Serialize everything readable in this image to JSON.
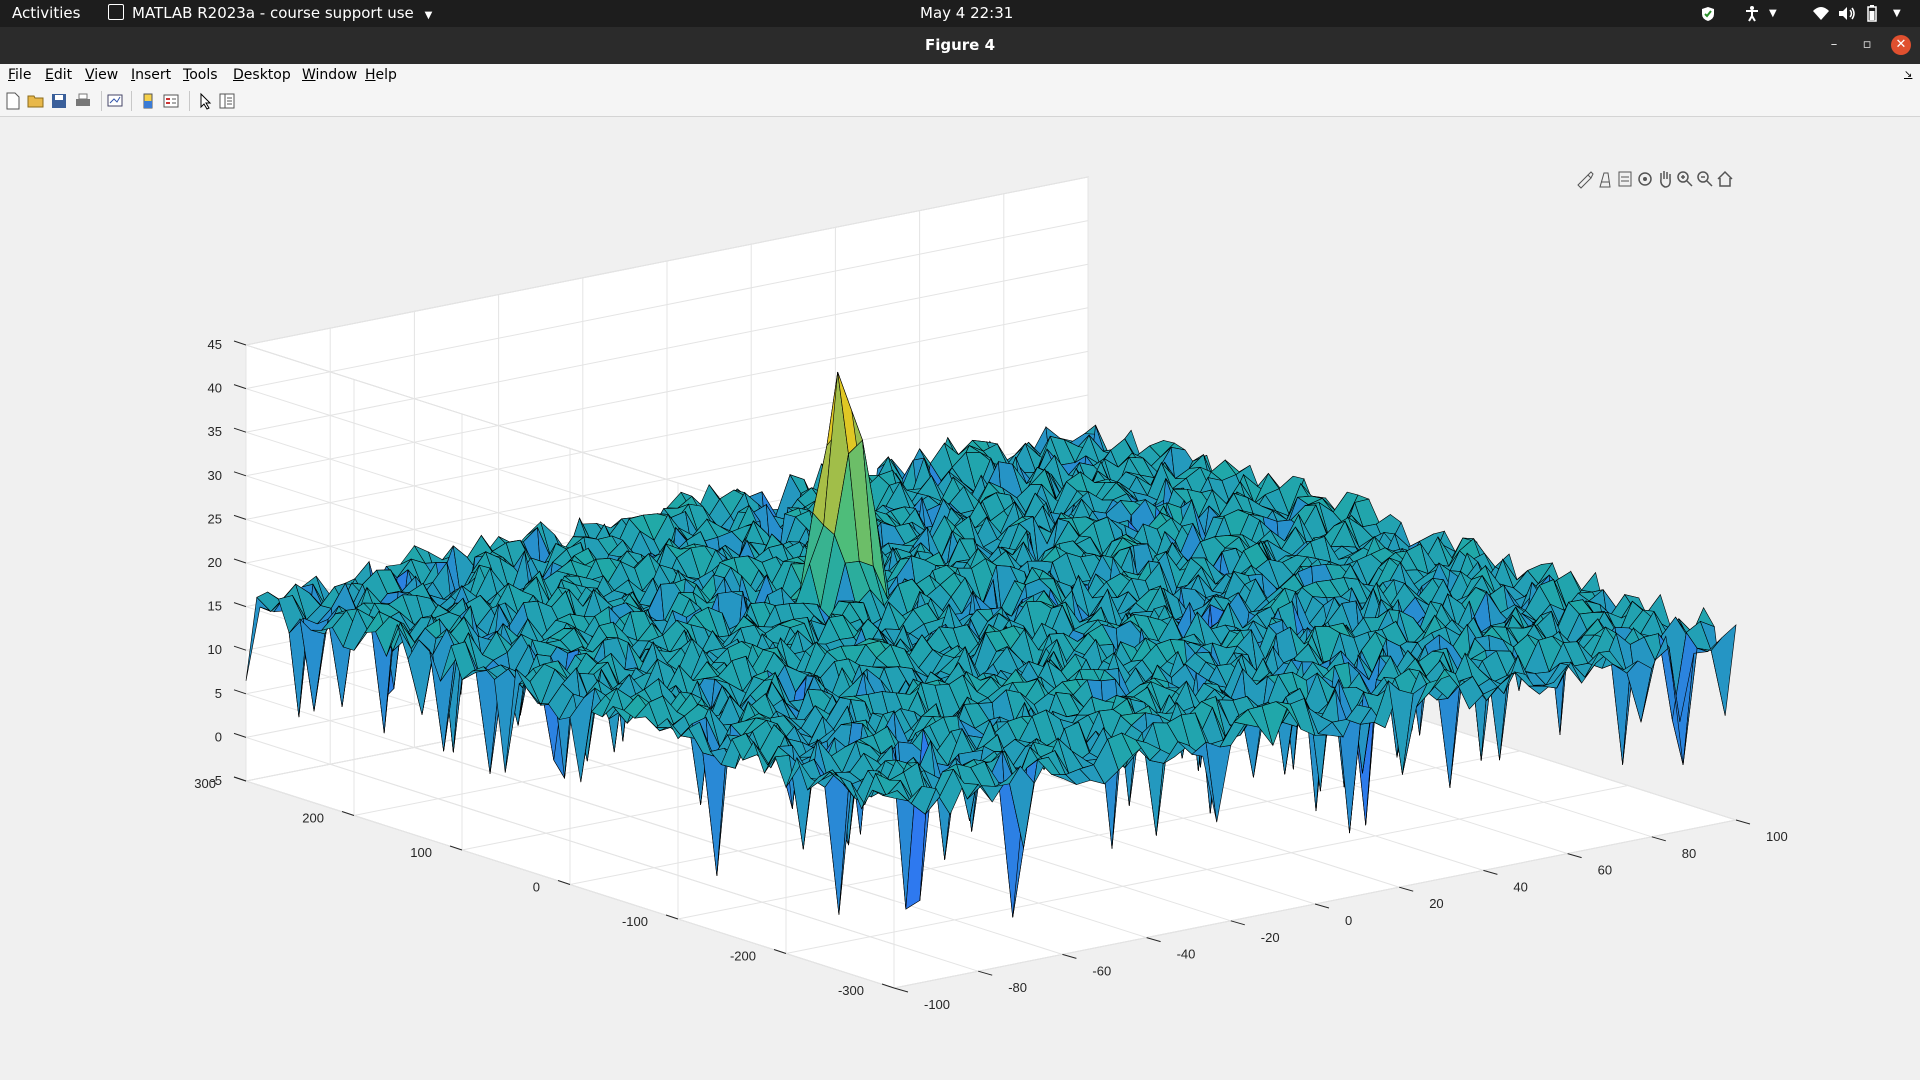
{
  "system_bar": {
    "activities": "Activities",
    "app_name": "MATLAB R2023a - course support use",
    "datetime": "May 4  22:31"
  },
  "window": {
    "title": "Figure 4"
  },
  "menu": [
    "File",
    "Edit",
    "View",
    "Insert",
    "Tools",
    "Desktop",
    "Window",
    "Help"
  ],
  "toolbar_icons": [
    "new-figure-icon",
    "open-icon",
    "save-icon",
    "print-icon",
    "link-plot-icon",
    "insert-colorbar-icon",
    "insert-legend-icon",
    "edit-plot-icon",
    "property-inspector-icon"
  ],
  "axes_toolbar_icons": [
    "brush-icon",
    "data-tips-icon",
    "export-icon",
    "rotate-3d-icon",
    "pan-icon",
    "zoom-in-icon",
    "zoom-out-icon",
    "home-icon"
  ],
  "colors": {
    "peak": "#e6c32b",
    "surface": "#20a8a8",
    "edge": "#000000",
    "low": "#3a4bd6"
  },
  "chart_data": {
    "type": "surface",
    "x_axis": {
      "ticks": [
        "-100",
        "-80",
        "-60",
        "-40",
        "-20",
        "0",
        "20",
        "40",
        "60",
        "80",
        "100"
      ],
      "range": [
        -100,
        100
      ]
    },
    "y_axis": {
      "ticks": [
        "-300",
        "-200",
        "-100",
        "0",
        "100",
        "200",
        "300"
      ],
      "range": [
        -300,
        300
      ]
    },
    "z_axis": {
      "ticks": [
        "-5",
        "0",
        "5",
        "10",
        "15",
        "20",
        "25",
        "30",
        "35",
        "40",
        "45"
      ],
      "range": [
        -5,
        45
      ]
    },
    "noise_floor": 16,
    "peak": {
      "x": -12,
      "y": 90,
      "z": 42
    },
    "grid": true
  }
}
